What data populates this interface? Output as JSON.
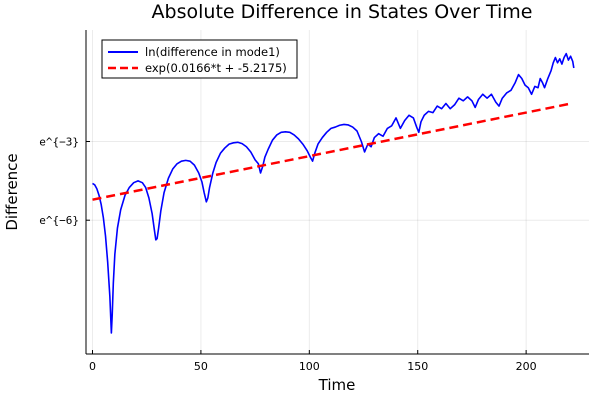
{
  "chart_data": {
    "type": "line",
    "title": "Absolute Difference in States Over Time",
    "xlabel": "Time",
    "ylabel": "Difference",
    "xlim": [
      -3,
      229
    ],
    "ylim": [
      -11.1,
      1.25
    ],
    "x_ticks": [
      0,
      50,
      100,
      150,
      200
    ],
    "y_ticks": [
      {
        "value": -3,
        "label": "e^{−3}"
      },
      {
        "value": -6,
        "label": "e^{−6}"
      }
    ],
    "grid": true,
    "legend_position": "top-left",
    "series": [
      {
        "name": "ln(difference in mode1)",
        "color": "#0000ff",
        "style": "solid",
        "points": [
          [
            0,
            -4.6
          ],
          [
            1,
            -4.65
          ],
          [
            2,
            -4.8
          ],
          [
            3,
            -5.05
          ],
          [
            4,
            -5.4
          ],
          [
            5,
            -5.9
          ],
          [
            6,
            -6.6
          ],
          [
            7,
            -7.6
          ],
          [
            8,
            -8.9
          ],
          [
            8.7,
            -10.3
          ],
          [
            9.1,
            -9.6
          ],
          [
            9.6,
            -8.4
          ],
          [
            10.3,
            -7.3
          ],
          [
            11.5,
            -6.3
          ],
          [
            13,
            -5.6
          ],
          [
            15,
            -5.05
          ],
          [
            17,
            -4.75
          ],
          [
            19,
            -4.57
          ],
          [
            21,
            -4.5
          ],
          [
            23,
            -4.57
          ],
          [
            24.5,
            -4.75
          ],
          [
            26,
            -5.15
          ],
          [
            27.5,
            -5.75
          ],
          [
            28.5,
            -6.35
          ],
          [
            29.2,
            -6.75
          ],
          [
            29.8,
            -6.7
          ],
          [
            30.5,
            -6.3
          ],
          [
            31.5,
            -5.65
          ],
          [
            33,
            -4.95
          ],
          [
            35,
            -4.4
          ],
          [
            37,
            -4.05
          ],
          [
            39,
            -3.85
          ],
          [
            41,
            -3.75
          ],
          [
            43,
            -3.72
          ],
          [
            45,
            -3.75
          ],
          [
            47,
            -3.9
          ],
          [
            49,
            -4.2
          ],
          [
            50.5,
            -4.55
          ],
          [
            51.5,
            -4.95
          ],
          [
            52.5,
            -5.3
          ],
          [
            53.2,
            -5.15
          ],
          [
            54,
            -4.75
          ],
          [
            55.5,
            -4.2
          ],
          [
            57,
            -3.8
          ],
          [
            59,
            -3.45
          ],
          [
            61,
            -3.25
          ],
          [
            63,
            -3.1
          ],
          [
            65,
            -3.05
          ],
          [
            67,
            -3.03
          ],
          [
            69,
            -3.08
          ],
          [
            71,
            -3.2
          ],
          [
            73,
            -3.4
          ],
          [
            75,
            -3.7
          ],
          [
            76.5,
            -3.85
          ],
          [
            77.5,
            -4.2
          ],
          [
            78.5,
            -3.95
          ],
          [
            79.5,
            -3.6
          ],
          [
            81,
            -3.3
          ],
          [
            83,
            -2.95
          ],
          [
            85,
            -2.75
          ],
          [
            87,
            -2.65
          ],
          [
            89,
            -2.63
          ],
          [
            91,
            -2.65
          ],
          [
            93,
            -2.75
          ],
          [
            95,
            -2.9
          ],
          [
            97,
            -3.1
          ],
          [
            99,
            -3.35
          ],
          [
            100.5,
            -3.6
          ],
          [
            101.5,
            -3.75
          ],
          [
            102.5,
            -3.45
          ],
          [
            104,
            -3.1
          ],
          [
            106,
            -2.85
          ],
          [
            108,
            -2.65
          ],
          [
            110,
            -2.5
          ],
          [
            112,
            -2.45
          ],
          [
            114,
            -2.38
          ],
          [
            116,
            -2.35
          ],
          [
            118,
            -2.37
          ],
          [
            120,
            -2.45
          ],
          [
            122,
            -2.6
          ],
          [
            124,
            -3.0
          ],
          [
            125.5,
            -3.4
          ],
          [
            127,
            -3.1
          ],
          [
            128.5,
            -3.2
          ],
          [
            130,
            -2.85
          ],
          [
            132,
            -2.7
          ],
          [
            134,
            -2.8
          ],
          [
            136,
            -2.5
          ],
          [
            138,
            -2.4
          ],
          [
            140,
            -2.1
          ],
          [
            142,
            -2.5
          ],
          [
            144,
            -2.2
          ],
          [
            146,
            -2.0
          ],
          [
            148,
            -2.1
          ],
          [
            149.5,
            -2.45
          ],
          [
            150.5,
            -2.65
          ],
          [
            151.5,
            -2.25
          ],
          [
            153,
            -2.0
          ],
          [
            155,
            -1.85
          ],
          [
            157,
            -1.9
          ],
          [
            159,
            -1.65
          ],
          [
            161,
            -1.75
          ],
          [
            163,
            -1.55
          ],
          [
            165,
            -1.75
          ],
          [
            167,
            -1.6
          ],
          [
            169,
            -1.35
          ],
          [
            171,
            -1.45
          ],
          [
            173,
            -1.3
          ],
          [
            175,
            -1.45
          ],
          [
            176.5,
            -1.7
          ],
          [
            178,
            -1.4
          ],
          [
            180,
            -1.2
          ],
          [
            182,
            -1.35
          ],
          [
            184,
            -1.2
          ],
          [
            186,
            -1.5
          ],
          [
            187.5,
            -1.65
          ],
          [
            189,
            -1.35
          ],
          [
            191,
            -1.15
          ],
          [
            193,
            -1.05
          ],
          [
            195,
            -0.75
          ],
          [
            196.5,
            -0.45
          ],
          [
            198,
            -0.6
          ],
          [
            199.5,
            -0.85
          ],
          [
            201,
            -0.95
          ],
          [
            202.5,
            -1.2
          ],
          [
            204,
            -0.9
          ],
          [
            205.5,
            -0.95
          ],
          [
            206.5,
            -0.6
          ],
          [
            207.5,
            -0.75
          ],
          [
            208.5,
            -0.95
          ],
          [
            210,
            -0.6
          ],
          [
            211.5,
            -0.3
          ],
          [
            212.5,
            0.0
          ],
          [
            213.5,
            0.2
          ],
          [
            214.5,
            0.0
          ],
          [
            215.5,
            0.15
          ],
          [
            216.5,
            -0.05
          ],
          [
            217.5,
            0.2
          ],
          [
            218.5,
            0.35
          ],
          [
            219.5,
            0.1
          ],
          [
            220.5,
            0.25
          ],
          [
            221.5,
            0.05
          ],
          [
            222,
            -0.2
          ]
        ]
      },
      {
        "name": "exp(0.0166*t + -5.2175)",
        "color": "#ff0000",
        "style": "dashed",
        "points": [
          [
            0,
            -5.2175
          ],
          [
            220,
            -1.5655
          ]
        ]
      }
    ]
  }
}
